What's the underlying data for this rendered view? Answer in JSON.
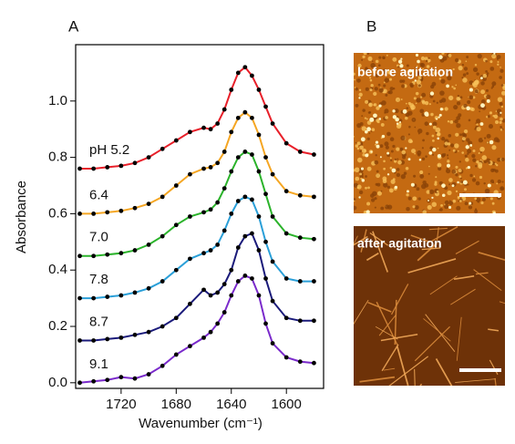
{
  "chart_data": {
    "type": "line",
    "panel_label": "A",
    "x_label": "Wavenumber (cm⁻¹)",
    "y_label": "Absorbance",
    "x": [
      1750,
      1740,
      1730,
      1720,
      1710,
      1700,
      1690,
      1680,
      1670,
      1660,
      1655,
      1650,
      1645,
      1640,
      1635,
      1630,
      1625,
      1620,
      1615,
      1610,
      1600,
      1590,
      1580
    ],
    "series": [
      {
        "name": "pH 5.2",
        "color": "#e8202a",
        "values": [
          0.76,
          0.76,
          0.765,
          0.77,
          0.78,
          0.8,
          0.83,
          0.86,
          0.89,
          0.905,
          0.9,
          0.92,
          0.97,
          1.04,
          1.1,
          1.12,
          1.09,
          1.04,
          0.98,
          0.92,
          0.85,
          0.82,
          0.81
        ]
      },
      {
        "name": "6.4",
        "color": "#f5a623",
        "values": [
          0.6,
          0.6,
          0.605,
          0.61,
          0.62,
          0.635,
          0.66,
          0.7,
          0.74,
          0.76,
          0.765,
          0.78,
          0.82,
          0.89,
          0.94,
          0.96,
          0.94,
          0.88,
          0.8,
          0.74,
          0.68,
          0.665,
          0.66
        ]
      },
      {
        "name": "7.0",
        "color": "#2bb32b",
        "values": [
          0.45,
          0.45,
          0.455,
          0.46,
          0.47,
          0.49,
          0.52,
          0.56,
          0.59,
          0.605,
          0.615,
          0.64,
          0.69,
          0.75,
          0.8,
          0.82,
          0.81,
          0.75,
          0.67,
          0.59,
          0.53,
          0.515,
          0.51
        ]
      },
      {
        "name": "7.8",
        "color": "#2a9fd8",
        "values": [
          0.3,
          0.3,
          0.305,
          0.31,
          0.32,
          0.335,
          0.36,
          0.4,
          0.44,
          0.46,
          0.47,
          0.49,
          0.54,
          0.6,
          0.645,
          0.66,
          0.65,
          0.59,
          0.5,
          0.43,
          0.37,
          0.36,
          0.36
        ]
      },
      {
        "name": "8.7",
        "color": "#1a1a7a",
        "values": [
          0.15,
          0.15,
          0.155,
          0.16,
          0.17,
          0.18,
          0.2,
          0.23,
          0.28,
          0.33,
          0.31,
          0.32,
          0.35,
          0.4,
          0.48,
          0.52,
          0.53,
          0.47,
          0.37,
          0.29,
          0.23,
          0.22,
          0.22
        ]
      },
      {
        "name": "9.1",
        "color": "#7a2acb",
        "values": [
          0.0,
          0.005,
          0.01,
          0.02,
          0.015,
          0.03,
          0.06,
          0.1,
          0.13,
          0.16,
          0.18,
          0.21,
          0.25,
          0.31,
          0.36,
          0.38,
          0.37,
          0.31,
          0.21,
          0.14,
          0.09,
          0.075,
          0.07
        ]
      }
    ],
    "xlim": [
      1753,
      1573
    ],
    "xticks": [
      1720,
      1680,
      1640,
      1600
    ],
    "ylim": [
      -0.02,
      1.2
    ],
    "yticks": [
      {
        "value": 0,
        "label": "0.0"
      },
      0.2,
      0.4,
      0.6,
      0.8,
      {
        "value": 1,
        "label": "1.0"
      }
    ]
  },
  "panel_b": {
    "label": "B",
    "images": [
      {
        "label": "before agitation"
      },
      {
        "label": "after agitation"
      }
    ]
  }
}
